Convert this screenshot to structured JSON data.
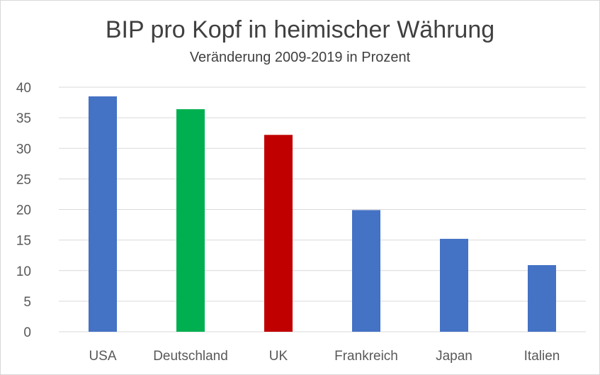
{
  "chart_data": {
    "type": "bar",
    "title": "BIP pro Kopf in heimischer Währung",
    "subtitle": "Veränderung 2009-2019 in Prozent",
    "xlabel": "",
    "ylabel": "",
    "categories": [
      "USA",
      "Deutschland",
      "UK",
      "Frankreich",
      "Japan",
      "Italien"
    ],
    "values": [
      38.5,
      36.4,
      32.2,
      19.9,
      15.2,
      10.9
    ],
    "colors": [
      "#4472C4",
      "#00B050",
      "#C00000",
      "#4472C4",
      "#4472C4",
      "#4472C4"
    ],
    "ylim": [
      0,
      40
    ],
    "yticks": [
      "0",
      "5",
      "10",
      "15",
      "20",
      "25",
      "30",
      "35",
      "40"
    ],
    "grid": true,
    "legend": "none"
  }
}
